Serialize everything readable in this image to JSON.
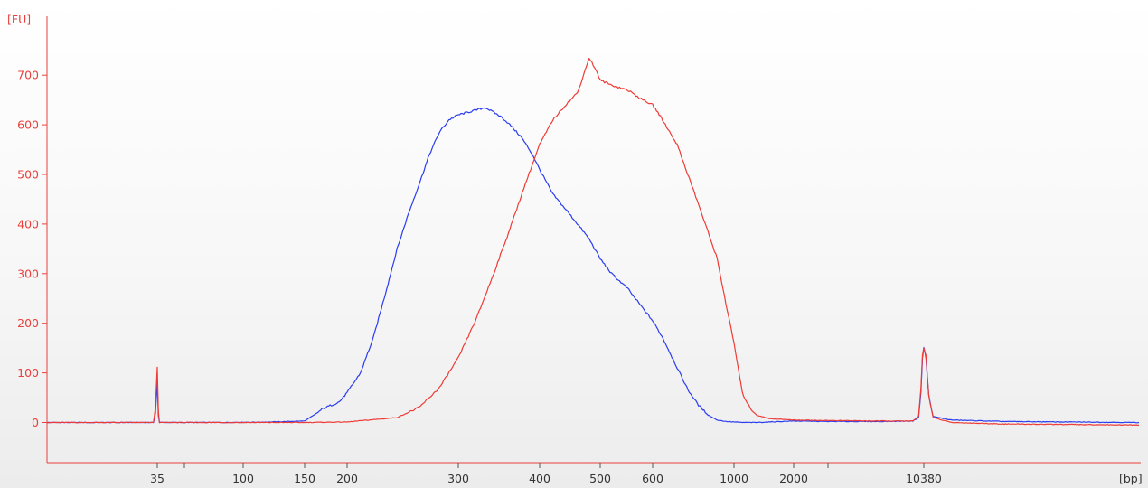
{
  "chart_data": {
    "type": "line",
    "y_unit": "[FU]",
    "x_unit": "[bp]",
    "y_ticks": [
      0,
      100,
      200,
      300,
      400,
      500,
      600,
      700
    ],
    "ylim": [
      -85,
      800
    ],
    "x_tick_labels": [
      "35",
      "100",
      "150",
      "200",
      "300",
      "400",
      "500",
      "600",
      "1000",
      "2000",
      "10380"
    ],
    "grid": false,
    "legend": "none",
    "colors": {
      "y_axis": "#e8413c",
      "x_axis": "#e8413c",
      "blue_series": "#2a3cf0",
      "red_series": "#ee3b36"
    },
    "x_scale": "electropherogram ladder (nonlinear bp)",
    "series": [
      {
        "color": "#2a3cf0",
        "points": [
          [
            15,
            0
          ],
          [
            30,
            0
          ],
          [
            34,
            0
          ],
          [
            34.5,
            18
          ],
          [
            35,
            80
          ],
          [
            35.5,
            14
          ],
          [
            36,
            0
          ],
          [
            50,
            0
          ],
          [
            80,
            0
          ],
          [
            120,
            1
          ],
          [
            150,
            3
          ],
          [
            160,
            15
          ],
          [
            170,
            28
          ],
          [
            180,
            35
          ],
          [
            190,
            42
          ],
          [
            200,
            60
          ],
          [
            210,
            100
          ],
          [
            220,
            170
          ],
          [
            230,
            260
          ],
          [
            240,
            350
          ],
          [
            250,
            420
          ],
          [
            260,
            480
          ],
          [
            270,
            540
          ],
          [
            280,
            585
          ],
          [
            290,
            610
          ],
          [
            300,
            620
          ],
          [
            310,
            625
          ],
          [
            320,
            630
          ],
          [
            330,
            635
          ],
          [
            340,
            625
          ],
          [
            350,
            615
          ],
          [
            360,
            600
          ],
          [
            375,
            575
          ],
          [
            390,
            540
          ],
          [
            400,
            510
          ],
          [
            420,
            460
          ],
          [
            440,
            430
          ],
          [
            460,
            400
          ],
          [
            480,
            370
          ],
          [
            500,
            330
          ],
          [
            520,
            300
          ],
          [
            550,
            270
          ],
          [
            580,
            230
          ],
          [
            600,
            205
          ],
          [
            640,
            170
          ],
          [
            700,
            110
          ],
          [
            750,
            65
          ],
          [
            800,
            35
          ],
          [
            850,
            15
          ],
          [
            900,
            5
          ],
          [
            950,
            2
          ],
          [
            1000,
            1
          ],
          [
            1100,
            0
          ],
          [
            1300,
            0
          ],
          [
            2000,
            3
          ],
          [
            3000,
            2
          ],
          [
            6000,
            2
          ],
          [
            9000,
            3
          ],
          [
            9700,
            10
          ],
          [
            10000,
            60
          ],
          [
            10200,
            130
          ],
          [
            10380,
            152
          ],
          [
            10560,
            130
          ],
          [
            10800,
            55
          ],
          [
            11200,
            12
          ],
          [
            13000,
            5
          ],
          [
            20000,
            2
          ],
          [
            60000,
            0
          ]
        ]
      },
      {
        "color": "#ee3b36",
        "points": [
          [
            15,
            0
          ],
          [
            30,
            0
          ],
          [
            34,
            0
          ],
          [
            34.5,
            30
          ],
          [
            35,
            110
          ],
          [
            35.5,
            25
          ],
          [
            36,
            0
          ],
          [
            50,
            0
          ],
          [
            80,
            0
          ],
          [
            120,
            0
          ],
          [
            150,
            0
          ],
          [
            200,
            1
          ],
          [
            240,
            10
          ],
          [
            260,
            30
          ],
          [
            280,
            70
          ],
          [
            300,
            130
          ],
          [
            320,
            210
          ],
          [
            340,
            300
          ],
          [
            360,
            390
          ],
          [
            380,
            480
          ],
          [
            400,
            560
          ],
          [
            420,
            610
          ],
          [
            440,
            640
          ],
          [
            460,
            665
          ],
          [
            470,
            700
          ],
          [
            480,
            735
          ],
          [
            490,
            715
          ],
          [
            500,
            690
          ],
          [
            520,
            680
          ],
          [
            550,
            670
          ],
          [
            580,
            650
          ],
          [
            600,
            640
          ],
          [
            620,
            625
          ],
          [
            650,
            600
          ],
          [
            700,
            560
          ],
          [
            800,
            440
          ],
          [
            900,
            330
          ],
          [
            950,
            240
          ],
          [
            1000,
            160
          ],
          [
            1050,
            110
          ],
          [
            1100,
            60
          ],
          [
            1200,
            30
          ],
          [
            1300,
            15
          ],
          [
            1500,
            8
          ],
          [
            2000,
            5
          ],
          [
            3000,
            4
          ],
          [
            6000,
            3
          ],
          [
            9000,
            3
          ],
          [
            9700,
            12
          ],
          [
            10000,
            70
          ],
          [
            10200,
            135
          ],
          [
            10380,
            152
          ],
          [
            10560,
            135
          ],
          [
            10800,
            55
          ],
          [
            11200,
            10
          ],
          [
            13000,
            0
          ],
          [
            20000,
            -3
          ],
          [
            60000,
            -5
          ]
        ]
      }
    ]
  }
}
